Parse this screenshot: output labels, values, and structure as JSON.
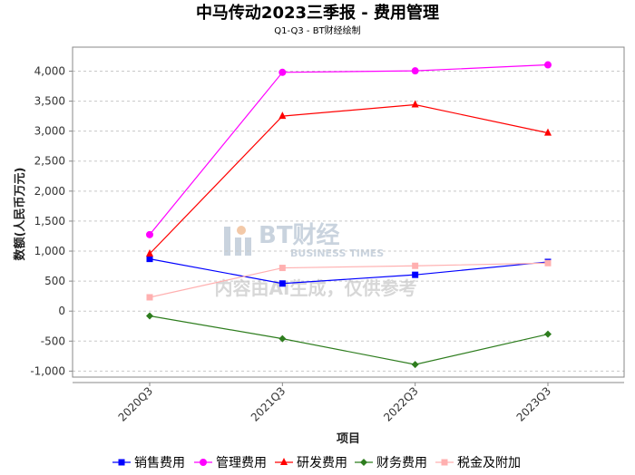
{
  "chart_data": {
    "type": "line",
    "title": "中马传动2023三季报 - 费用管理",
    "subtitle": "Q1-Q3 - BT财经绘制",
    "xlabel": "项目",
    "ylabel": "数额(人民币万元)",
    "categories": [
      "2020Q3",
      "2021Q3",
      "2022Q3",
      "2023Q3"
    ],
    "ylim": [
      -1100,
      4400
    ],
    "yticks": [
      -1000,
      -500,
      0,
      500,
      1000,
      1500,
      2000,
      2500,
      3000,
      3500,
      4000
    ],
    "ytick_labels": [
      "-1,000",
      "-500",
      "0",
      "500",
      "1,000",
      "1,500",
      "2,000",
      "2,500",
      "3,000",
      "3,500",
      "4,000"
    ],
    "grid": true,
    "legend_position": "bottom",
    "series": [
      {
        "name": "销售费用",
        "color": "#0000ff",
        "marker": "square",
        "values": [
          870,
          460,
          605,
          820
        ]
      },
      {
        "name": "管理费用",
        "color": "#ff00ff",
        "marker": "circle",
        "values": [
          1275,
          3980,
          4005,
          4105
        ]
      },
      {
        "name": "研发费用",
        "color": "#ff0000",
        "marker": "triangle",
        "values": [
          955,
          3250,
          3440,
          2970
        ]
      },
      {
        "name": "财务费用",
        "color": "#2e7d1e",
        "marker": "diamond",
        "values": [
          -80,
          -460,
          -890,
          -385
        ]
      },
      {
        "name": "税金及附加",
        "color": "#ffb0b0",
        "marker": "square",
        "values": [
          230,
          720,
          755,
          800
        ]
      }
    ]
  },
  "watermark": {
    "brand": "BT财经",
    "brand_en": "BUSINESS TIMES",
    "note": "内容由AI生成，仅供参考"
  }
}
